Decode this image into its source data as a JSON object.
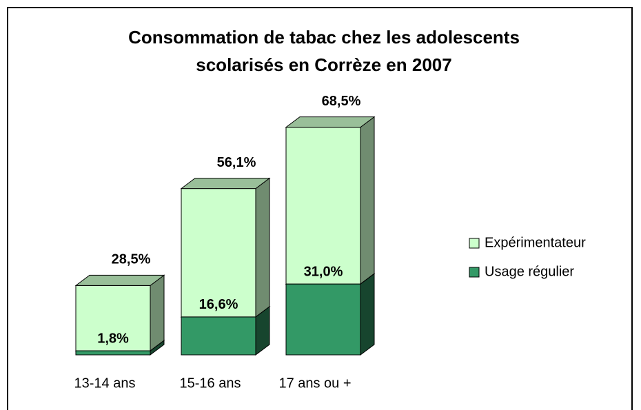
{
  "chart_data": {
    "type": "bar3d_stacked",
    "title": "Consommation de tabac chez les adolescents scolarisés en Corrèze en 2007",
    "categories": [
      "13-14 ans",
      "15-16 ans",
      "17 ans ou +"
    ],
    "series": [
      {
        "name": "Usage régulier",
        "color": "#339966",
        "values": [
          1.8,
          16.6,
          31.0
        ],
        "value_labels": [
          "1,8%",
          "16,6%",
          "31,0%"
        ]
      },
      {
        "name": "Expérimentateur",
        "color": "#ccffcc",
        "values": [
          28.5,
          56.1,
          68.5
        ],
        "value_labels": [
          "28,5%",
          "56,1%",
          "68,5%"
        ]
      }
    ],
    "ylim": [
      0,
      100
    ],
    "legend": "right"
  }
}
